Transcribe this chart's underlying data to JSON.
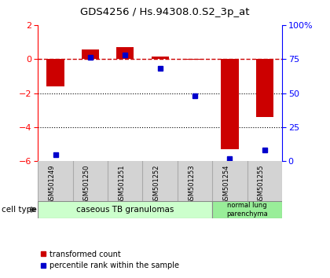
{
  "title": "GDS4256 / Hs.94308.0.S2_3p_at",
  "samples": [
    "GSM501249",
    "GSM501250",
    "GSM501251",
    "GSM501252",
    "GSM501253",
    "GSM501254",
    "GSM501255"
  ],
  "transformed_count": [
    -1.6,
    0.55,
    0.7,
    0.15,
    -0.05,
    -5.3,
    -3.4
  ],
  "percentile_rank": [
    5,
    76,
    78,
    68,
    48,
    2,
    8
  ],
  "ylim_left": [
    -6,
    2
  ],
  "ylim_right": [
    0,
    100
  ],
  "yticks_left": [
    -6,
    -4,
    -2,
    0,
    2
  ],
  "yticks_right": [
    0,
    25,
    50,
    75,
    100
  ],
  "ytick_labels_right": [
    "0",
    "25",
    "50",
    "75",
    "100%"
  ],
  "bar_color": "#cc0000",
  "dot_color": "#0000cc",
  "dashed_line_color": "#cc0000",
  "group1_label": "caseous TB granulomas",
  "group2_label": "normal lung\nparenchyma",
  "group1_color": "#ccffcc",
  "group2_color": "#99ee99",
  "cell_type_label": "cell type",
  "legend_bar_label": "transformed count",
  "legend_dot_label": "percentile rank within the sample",
  "label_box_color": "#d3d3d3",
  "label_box_edge": "#aaaaaa"
}
